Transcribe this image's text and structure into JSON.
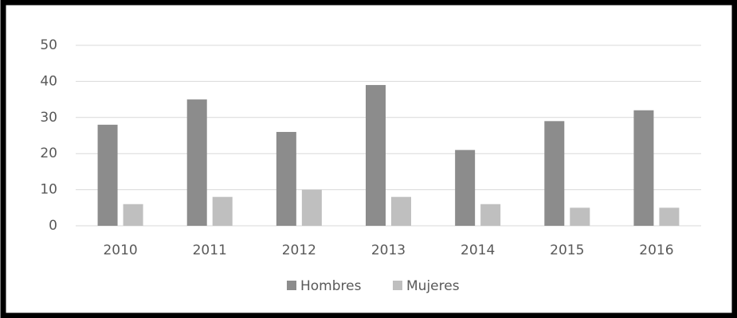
{
  "chart_data": {
    "type": "bar",
    "categories": [
      "2010",
      "2011",
      "2012",
      "2013",
      "2014",
      "2015",
      "2016"
    ],
    "series": [
      {
        "name": "Hombres",
        "color": "#8c8c8c",
        "values": [
          28,
          35,
          26,
          39,
          21,
          29,
          32
        ]
      },
      {
        "name": "Mujeres",
        "color": "#bfbfbf",
        "values": [
          6,
          8,
          10,
          8,
          6,
          5,
          5
        ]
      }
    ],
    "ylim": [
      0,
      50
    ],
    "yticks": [
      0,
      10,
      20,
      30,
      40,
      50
    ],
    "grid": true,
    "legend": "bottom"
  }
}
